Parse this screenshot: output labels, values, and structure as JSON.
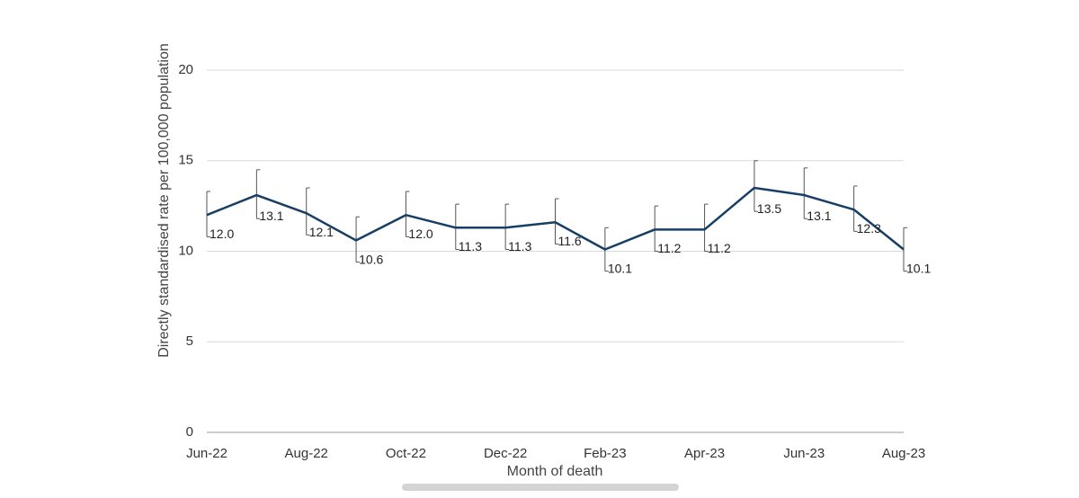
{
  "chart_data": {
    "type": "line",
    "x_label": "Month of death",
    "y_label": "Directly standardised rate per 100,000 population",
    "categories": [
      "Jun-22",
      null,
      "Aug-22",
      null,
      "Oct-22",
      null,
      "Dec-22",
      null,
      "Feb-23",
      null,
      "Apr-23",
      null,
      "Jun-23",
      null,
      "Aug-23"
    ],
    "series": [
      {
        "color": "#173f66",
        "values": [
          12.0,
          13.1,
          12.1,
          10.6,
          12.0,
          11.3,
          11.3,
          11.6,
          10.1,
          11.2,
          11.2,
          13.5,
          13.1,
          12.3,
          10.1
        ],
        "value_labels": [
          "12.0",
          "13.1",
          "12.1",
          "10.6",
          "12.0",
          "11.3",
          "11.3",
          "11.6",
          "10.1",
          "11.2",
          "11.2",
          "13.5",
          "13.1",
          "12.3",
          "10.1"
        ],
        "lower": [
          10.8,
          11.8,
          10.9,
          9.4,
          10.8,
          10.1,
          10.1,
          10.4,
          8.9,
          10.0,
          10.0,
          12.2,
          11.8,
          11.1,
          8.9
        ],
        "upper": [
          13.3,
          14.5,
          13.5,
          11.9,
          13.3,
          12.6,
          12.6,
          12.9,
          11.3,
          12.5,
          12.6,
          15.0,
          14.6,
          13.6,
          11.3
        ]
      }
    ],
    "ylim": [
      0,
      20
    ],
    "yticks": [
      0,
      5,
      10,
      15,
      20
    ],
    "grid": true,
    "error_bar_color": "#555555"
  }
}
